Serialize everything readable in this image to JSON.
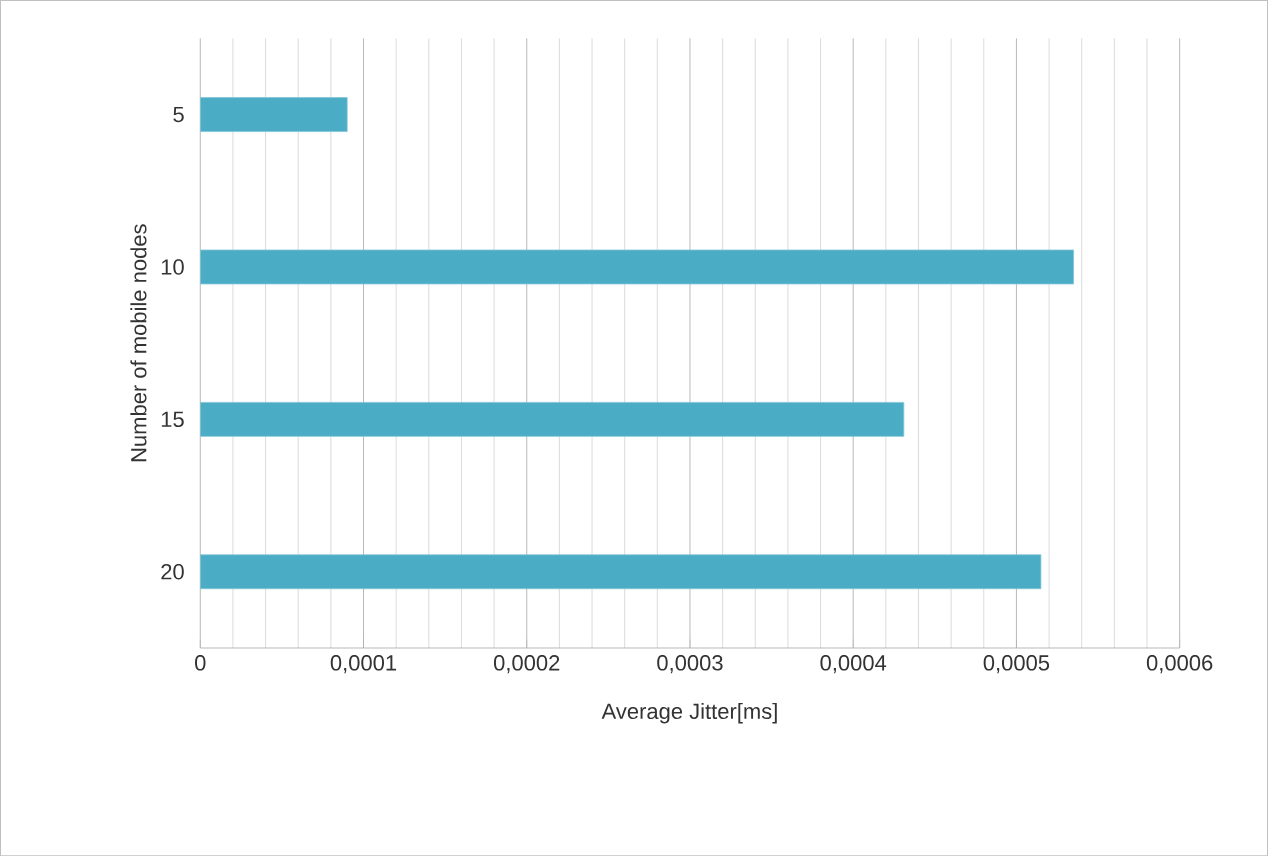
{
  "chart_data": {
    "type": "bar",
    "orientation": "horizontal",
    "xlabel": "Average Jitter[ms]",
    "ylabel": "Number of mobile nodes",
    "categories": [
      "5",
      "10",
      "15",
      "20"
    ],
    "values": [
      9e-05,
      0.000535,
      0.000431,
      0.000515
    ],
    "color": "#4bacc6",
    "xlim": [
      0,
      0.0006
    ],
    "xticks": [
      0,
      {
        "value": 0.0001,
        "label": "0,0001"
      },
      {
        "value": 0.0002,
        "label": "0,0002"
      },
      {
        "value": 0.0003,
        "label": "0,0003"
      },
      {
        "value": 0.0004,
        "label": "0,0004"
      },
      {
        "value": 0.0005,
        "label": "0,0005"
      },
      {
        "value": 0.0006,
        "label": "0,0006"
      }
    ],
    "grid": "x"
  }
}
